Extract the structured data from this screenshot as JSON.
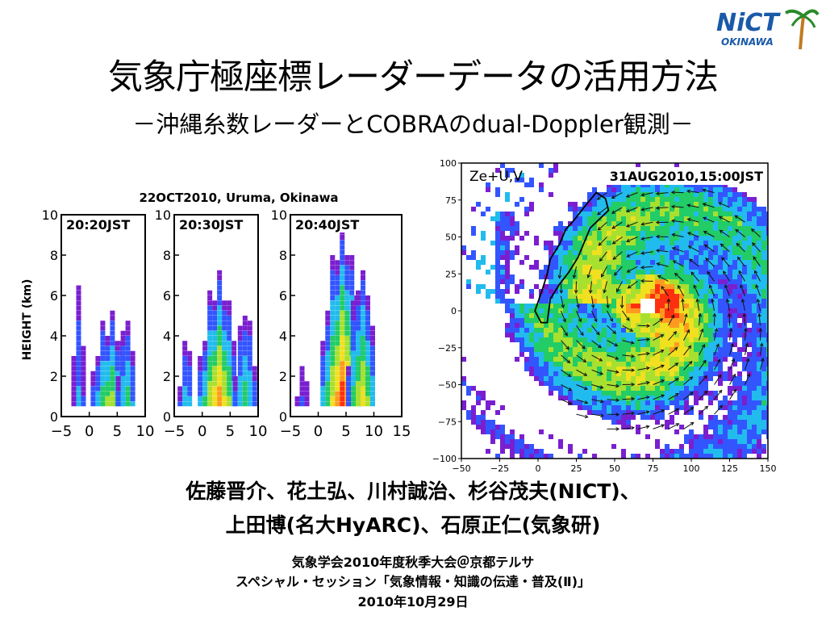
{
  "header": {
    "title": "気象庁極座標レーダーデータの活用方法",
    "subtitle": "－沖縄糸数レーダーとCOBRAのdual-Doppler観測－"
  },
  "logo": {
    "text": "NiCT",
    "subtext": "OKINAWA",
    "accent": "#1a5aa8",
    "palm": "#2a8a2a",
    "trunk": "#c07a20"
  },
  "authors": {
    "line1": "佐藤晋介、花土弘、川村誠治、杉谷茂夫(NICT)、",
    "line2": "上田博(名大HyARC)、石原正仁(気象研)"
  },
  "conference": {
    "line1": "気象学会2010年度秋季大会＠京都テルサ",
    "line2": "スペシャル・セッション「気象情報・知識の伝達・普及(Ⅱ)」",
    "line3": "2010年10月29日"
  },
  "chart_data": [
    {
      "type": "heatmap",
      "title": "22OCT2010, Uruma, Okinawa",
      "ylabel": "HEIGHT (km)",
      "ylim": [
        0,
        10
      ],
      "yticks": [
        "0",
        "2",
        "4",
        "6",
        "8",
        "10"
      ],
      "panels": [
        {
          "label": "20:20JST",
          "xlim": [
            -5,
            10
          ],
          "xticks": [
            "−5",
            "0",
            "5",
            "10"
          ]
        },
        {
          "label": "20:30JST",
          "xlim": [
            -5,
            10
          ],
          "xticks": [
            "−5",
            "0",
            "5",
            "10"
          ]
        },
        {
          "label": "20:40JST",
          "xlim": [
            -5,
            15
          ],
          "xticks": [
            "−5",
            "0",
            "5",
            "10",
            "15"
          ]
        }
      ]
    },
    {
      "type": "heatmap",
      "label": "Ze+U,V",
      "annotation": "31AUG2010,15:00JST",
      "xlim": [
        -50,
        150
      ],
      "ylim": [
        -100,
        100
      ],
      "xticks": [
        "−50",
        "−25",
        "0",
        "25",
        "50",
        "75",
        "100",
        "125",
        "150"
      ],
      "yticks": [
        "100",
        "75",
        "50",
        "25",
        "0",
        "−25",
        "−50",
        "−75",
        "−100"
      ]
    }
  ]
}
